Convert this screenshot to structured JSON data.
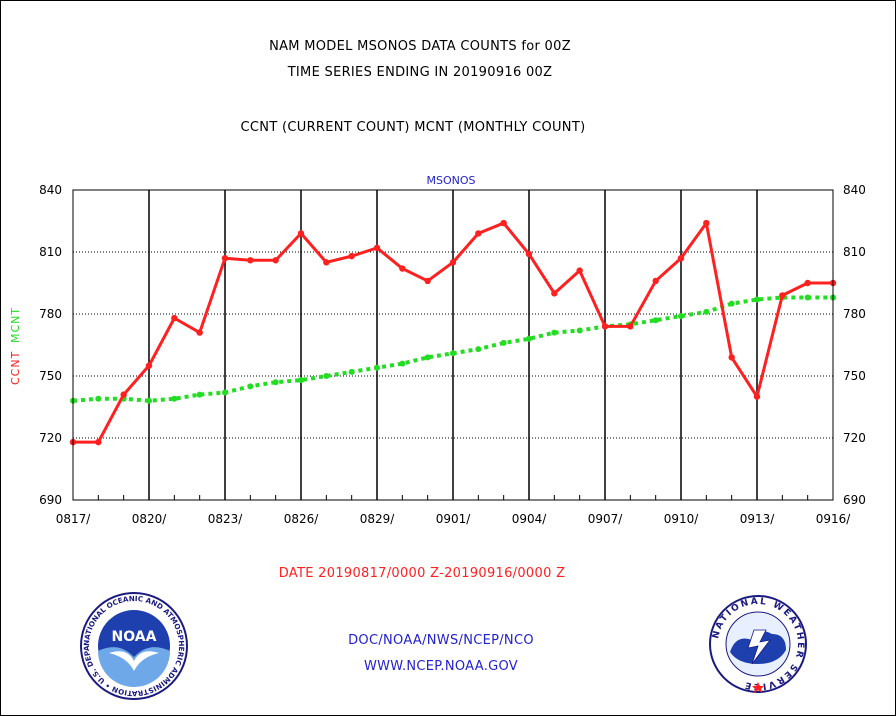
{
  "header": {
    "line1": "NAM MODEL MSONOS DATA COUNTS for 00Z",
    "line2": "TIME SERIES ENDING IN 20190916 00Z",
    "line3": "CCNT (CURRENT COUNT) MCNT (MONTHLY COUNT)"
  },
  "footer": {
    "date_range": "DATE 20190817/0000 Z-20190916/0000 Z",
    "org": "DOC/NOAA/NWS/NCEP/NCO",
    "url": "WWW.NCEP.NOAA.GOV"
  },
  "logos": {
    "noaa": {
      "label": "NOAA",
      "ring_text": "NATIONAL OCEANIC AND ATMOSPHERIC ADMINISTRATION • U.S. DEPARTMENT OF COMMERCE"
    },
    "nws": {
      "ring_text": "NATIONAL WEATHER SERVICE"
    }
  },
  "colors": {
    "ccnt": "#ff2020",
    "mcnt": "#22dd22",
    "title_blue": "#2222cc",
    "footer_red": "#ff2020",
    "footer_blue": "#2222cc"
  },
  "chart_data": {
    "type": "line",
    "title": "MSONOS",
    "ylabel_ccnt": "CCNT",
    "ylabel_mcnt": "MCNT",
    "ylim": [
      690,
      840
    ],
    "yticks": [
      690,
      720,
      750,
      780,
      810,
      840
    ],
    "xtick_labels": [
      "0817/",
      "0820/",
      "0823/",
      "0826/",
      "0829/",
      "0901/",
      "0904/",
      "0907/",
      "0910/",
      "0913/",
      "0916/"
    ],
    "x": [
      "0817",
      "0818",
      "0819",
      "0820",
      "0821",
      "0822",
      "0823",
      "0824",
      "0825",
      "0826",
      "0827",
      "0828",
      "0829",
      "0830",
      "0831",
      "0901",
      "0902",
      "0903",
      "0904",
      "0905",
      "0906",
      "0907",
      "0908",
      "0909",
      "0910",
      "0911",
      "0912",
      "0913",
      "0914",
      "0915",
      "0916"
    ],
    "grid": true,
    "series": [
      {
        "name": "CCNT",
        "style": "solid",
        "values": [
          718,
          718,
          741,
          755,
          778,
          771,
          807,
          806,
          806,
          819,
          805,
          808,
          812,
          802,
          796,
          805,
          819,
          824,
          809,
          790,
          801,
          774,
          774,
          796,
          807,
          824,
          759,
          740,
          789,
          795,
          795
        ]
      },
      {
        "name": "MCNT",
        "style": "dotted",
        "values": [
          738,
          739,
          739,
          738,
          739,
          741,
          742,
          745,
          747,
          748,
          750,
          752,
          754,
          756,
          759,
          761,
          763,
          766,
          768,
          771,
          772,
          774,
          775,
          777,
          779,
          781,
          785,
          787,
          788,
          788,
          788
        ]
      }
    ]
  }
}
